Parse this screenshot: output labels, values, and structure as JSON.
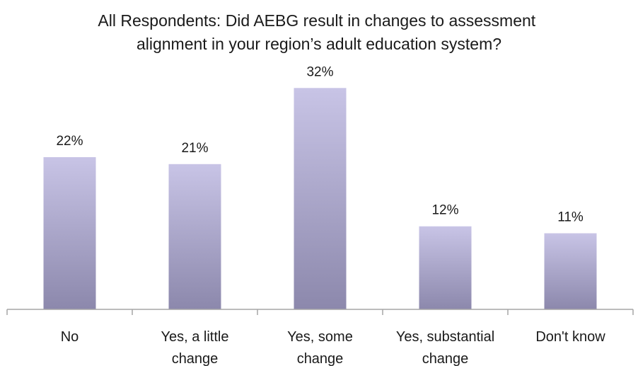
{
  "chart_data": {
    "type": "bar",
    "title": "All Respondents: Did AEBG result in changes to assessment alignment in your region’s adult education system?",
    "title_lines": [
      "All Respondents: Did AEBG result in changes to assessment",
      "alignment in your region’s adult education system?"
    ],
    "categories": [
      "No",
      "Yes, a little change",
      "Yes, some change",
      "Yes, substantial change",
      "Don't know"
    ],
    "category_lines": [
      [
        "No"
      ],
      [
        "Yes, a little",
        "change"
      ],
      [
        "Yes, some",
        "change"
      ],
      [
        "Yes, substantial",
        "change"
      ],
      [
        "Don't know"
      ]
    ],
    "values": [
      22,
      21,
      32,
      12,
      11
    ],
    "data_labels": [
      "22%",
      "21%",
      "32%",
      "12%",
      "11%"
    ],
    "value_unit": "%",
    "ylim": [
      0,
      35
    ],
    "grid": false,
    "legend": "none",
    "xlabel": "",
    "ylabel": "",
    "colors": {
      "bar_top": "#c8c4e6",
      "bar_bottom": "#8c88ac",
      "axis": "#a6a6a6"
    }
  }
}
